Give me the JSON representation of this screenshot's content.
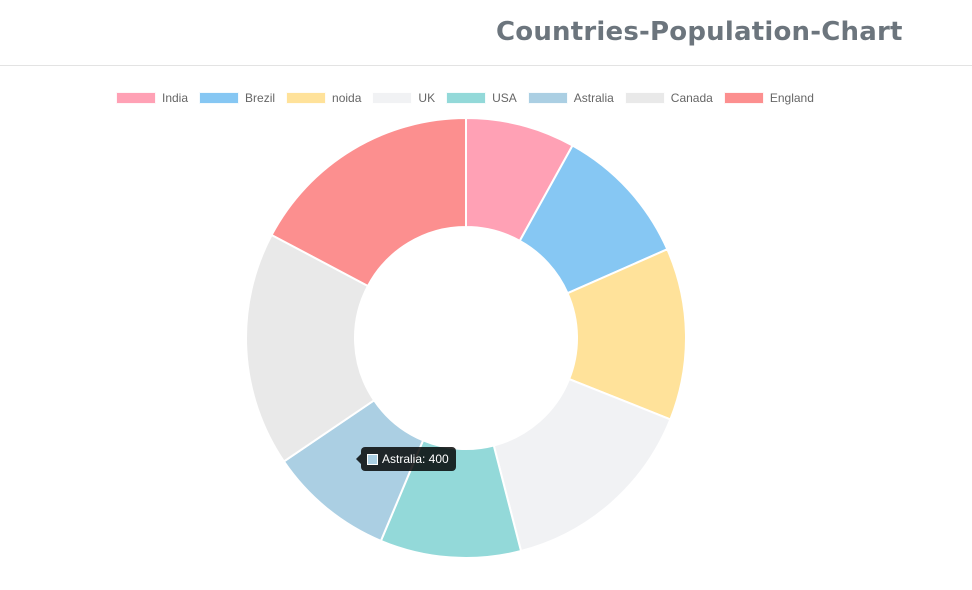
{
  "header": {
    "title": "Countries-Population-Chart"
  },
  "chart_data": {
    "type": "pie",
    "donut": true,
    "categories": [
      "India",
      "Brezil",
      "noida",
      "UK",
      "USA",
      "Astralia",
      "Canada",
      "England"
    ],
    "values": [
      350,
      450,
      550,
      650,
      450,
      400,
      750,
      750
    ],
    "colors": [
      "#ffa1b5",
      "#86c7f3",
      "#ffe29a",
      "#f1f2f4",
      "#93d9d9",
      "#abcfe3",
      "#e9e9e9",
      "#fc8f8f"
    ],
    "legend_position": "top",
    "tooltip": {
      "label": "Astralia",
      "value": 400,
      "text": "Astralia: 400",
      "color": "#abcfe3"
    }
  }
}
